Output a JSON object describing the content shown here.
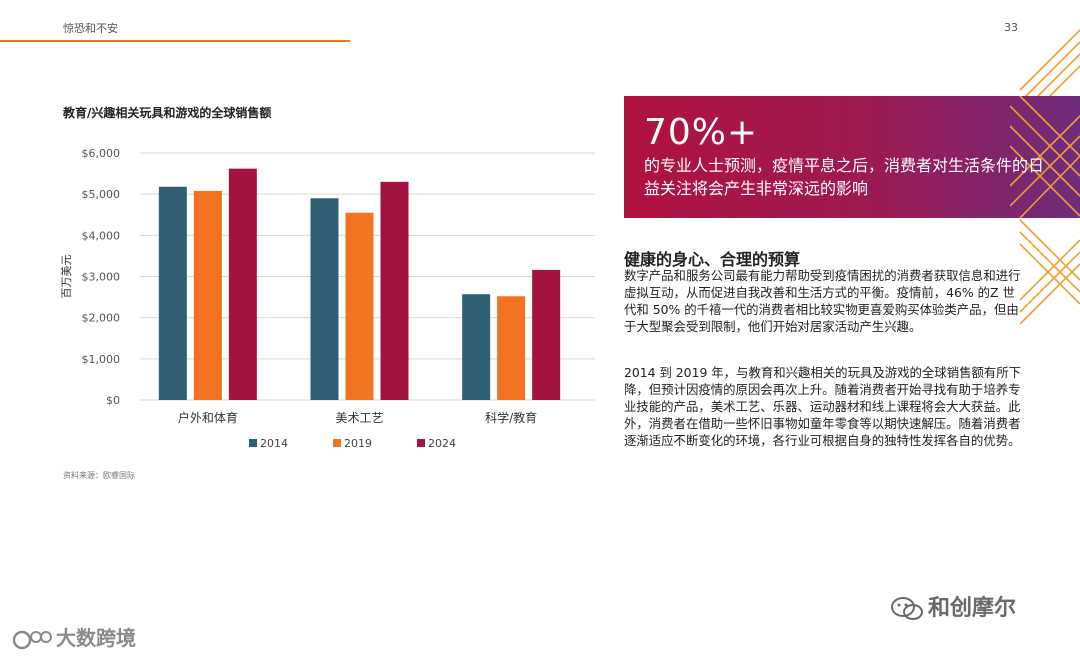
{
  "header": {
    "title": "惊恐和不安",
    "page_number": "33"
  },
  "chart_title": "教育/兴趣相关玩具和游戏的全球销售额",
  "source": "资料来源：欧睿国际",
  "chart_data": {
    "type": "bar",
    "title": "教育/兴趣相关玩具和游戏的全球销售额",
    "ylabel": "百万美元",
    "xlabel": "",
    "ylim": [
      0,
      6000
    ],
    "yticks": [
      0,
      1000,
      2000,
      3000,
      4000,
      5000,
      6000
    ],
    "ytick_labels": [
      "$0",
      "$1,000",
      "$2,000",
      "$3,000",
      "$4,000",
      "$5,000",
      "$6,000"
    ],
    "categories": [
      "户外和体育",
      "美术工艺",
      "科学/教育"
    ],
    "series": [
      {
        "name": "2014",
        "color": "#2e5f74",
        "values": [
          5180,
          4900,
          2570
        ]
      },
      {
        "name": "2019",
        "color": "#f47321",
        "values": [
          5080,
          4550,
          2520
        ]
      },
      {
        "name": "2024",
        "color": "#a3133f",
        "values": [
          5620,
          5300,
          3160
        ]
      }
    ],
    "grid": true,
    "legend": "bottom"
  },
  "callout": {
    "big": "70%+",
    "text": "的专业人士预测，疫情平息之后，消费者对生活条件的日益关注将会产生非常深远的影响"
  },
  "section": {
    "heading": "健康的身心、合理的预算",
    "para1": "数字产品和服务公司最有能力帮助受到疫情困扰的消费者获取信息和进行虚拟互动，从而促进自我改善和生活方式的平衡。疫情前，46% 的Z 世代和 50% 的千禧一代的消费者相比较实物更喜爱购买体验类产品，但由于大型聚会受到限制，他们开始对居家活动产生兴趣。",
    "para2": "2014 到 2019 年，与教育和兴趣相关的玩具及游戏的全球销售额有所下降，但预计因疫情的原因会再次上升。随着消费者开始寻找有助于培养专业技能的产品，美术工艺、乐器、运动器材和线上课程将会大大获益。此外，消费者在借助一些怀旧事物如童年零食等以期快速解压。随着消费者逐渐适应不断变化的环境，各行业可根据自身的独特性发挥各自的优势。"
  },
  "watermarks": {
    "right": "和创摩尔",
    "left": "大数跨境"
  }
}
